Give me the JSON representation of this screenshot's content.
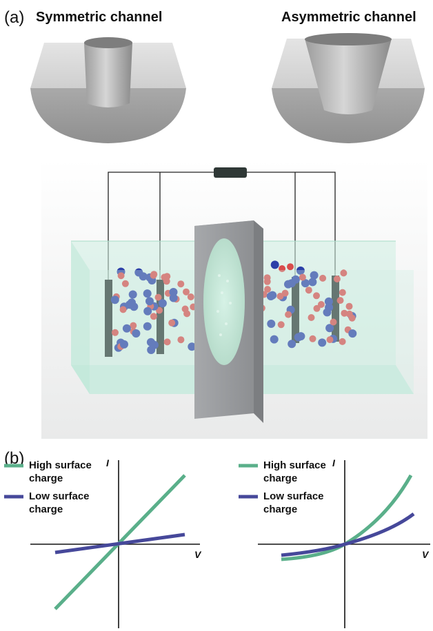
{
  "panel_a": {
    "label": "(a)",
    "channels": [
      {
        "title": "Symmetric channel"
      },
      {
        "title": "Asymmetric channel"
      }
    ]
  },
  "panel_b": {
    "label": "(b)",
    "plots": [
      {
        "y_axis_label": "I",
        "x_axis_label": "V",
        "legend": [
          {
            "label": "High surface charge",
            "line1": "High surface",
            "line2": "charge",
            "color": "#5aaf8a"
          },
          {
            "label": "Low surface charge",
            "line1": "Low surface",
            "line2": "charge",
            "color": "#46489a"
          }
        ]
      },
      {
        "y_axis_label": "I",
        "x_axis_label": "V",
        "legend": [
          {
            "label": "High surface charge",
            "line1": "High surface",
            "line2": "charge",
            "color": "#5aaf8a"
          },
          {
            "label": "Low surface charge",
            "line1": "Low surface",
            "line2": "charge",
            "color": "#46489a"
          }
        ]
      }
    ]
  },
  "colors": {
    "high_charge": "#5aaf8a",
    "low_charge": "#46489a",
    "water": "#bfe8d9",
    "cation": "#d94c4c",
    "anion": "#2c3fa8",
    "electrode": "#2f3836",
    "membrane": "#9a9c9f"
  }
}
